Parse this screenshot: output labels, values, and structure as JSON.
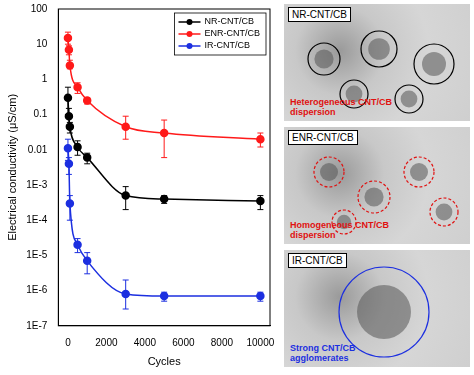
{
  "chart_data": {
    "type": "line",
    "x_label": "Cycles",
    "y_label": "Electrical conductivity (μS/cm)",
    "log": "y",
    "grid": false,
    "legend": "top right",
    "marker": "circle",
    "line_style": "solid",
    "xlim": [
      -500,
      10500
    ],
    "xticks": [
      0,
      2000,
      4000,
      6000,
      8000,
      10000
    ],
    "ylim": [
      1e-07,
      100
    ],
    "yticks": [
      {
        "value": 1e-07,
        "label": "1E-7"
      },
      {
        "value": 1e-06,
        "label": "1E-6"
      },
      {
        "value": 1e-05,
        "label": "1E-5"
      },
      {
        "value": 0.0001,
        "label": "1E-4"
      },
      {
        "value": 0.001,
        "label": "1E-3"
      },
      0.01,
      0.1,
      1,
      10,
      100
    ],
    "x": [
      0,
      50,
      100,
      500,
      1000,
      3000,
      5000,
      10000
    ],
    "series": [
      {
        "name": "NR-CNT/CB",
        "color": "#000000",
        "values": [
          0.3,
          0.09,
          0.045,
          0.012,
          0.006,
          0.0005,
          0.0004,
          0.00035
        ],
        "error_low": [
          0.1,
          0.05,
          0.03,
          0.007,
          0.004,
          0.0002,
          0.0003,
          0.0002
        ],
        "error_high": [
          0.6,
          0.15,
          0.06,
          0.018,
          0.008,
          0.0009,
          0.0005,
          0.0005
        ]
      },
      {
        "name": "ENR-CNT/CB",
        "color": "#ff1a1a",
        "values": [
          15,
          7,
          2.5,
          0.6,
          0.25,
          0.045,
          0.03,
          0.02
        ],
        "error_low": [
          10,
          5,
          2,
          0.4,
          0.2,
          0.02,
          0.006,
          0.012
        ],
        "error_high": [
          22,
          9,
          3.5,
          0.8,
          0.3,
          0.09,
          0.07,
          0.03
        ]
      },
      {
        "name": "IR-CNT/CB",
        "color": "#1c2fe0",
        "values": [
          0.011,
          0.004,
          0.0003,
          2e-05,
          7e-06,
          8e-07,
          7e-07,
          7e-07
        ],
        "error_low": [
          0.005,
          0.002,
          0.0001,
          1.2e-05,
          3e-06,
          3e-07,
          5e-07,
          5e-07
        ],
        "error_high": [
          0.02,
          0.006,
          0.0005,
          3e-05,
          1.2e-05,
          2e-06,
          9e-07,
          9e-07
        ]
      }
    ]
  },
  "images": [
    {
      "label": "NR-CNT/CB",
      "annotation": "Heterogeneous CNT/CB dispersion",
      "color": "#e01010"
    },
    {
      "label": "ENR-CNT/CB",
      "annotation": "Homogeneous CNT/CB dispersion",
      "color": "#e01010"
    },
    {
      "label": "IR-CNT/CB",
      "annotation": "Strong CNT/CB agglomerates",
      "color": "#1c2fe0"
    }
  ]
}
